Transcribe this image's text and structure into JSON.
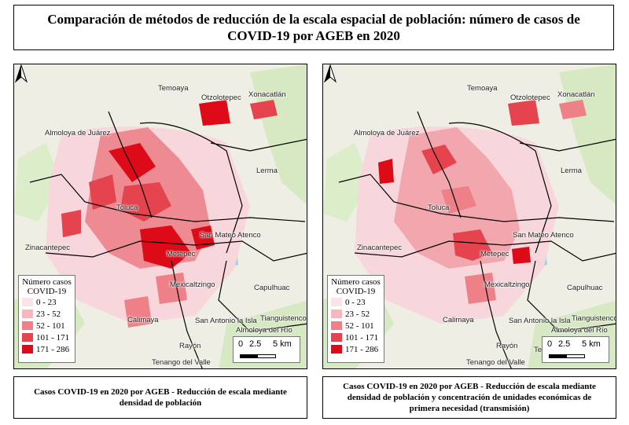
{
  "title": {
    "line1": "Comparación de métodos de reducción de la escala espacial de población: número de casos de",
    "line2": "COVID-19 por AGEB en 2020"
  },
  "places": {
    "temoaya": "Temoaya",
    "otzolotepec": "Otzolotepec",
    "xonacatlan": "Xonacatlán",
    "almoloya_juarez": "Almoloya de Juárez",
    "lerma": "Lerma",
    "toluca": "Toluca",
    "san_mateo_atenco": "San Mateo Atenco",
    "zinacantepec": "Zinacantepec",
    "metepec": "Metepec",
    "mexicaltzingo": "Mexicaltzingo",
    "capulhuac": "Capulhuac",
    "calimaya": "Calimaya",
    "san_antonio_isla": "San Antonio la Isla",
    "tianguistenco": "Tianguistenco",
    "almoloya_rio": "Almoloya del Río",
    "rayon": "Rayón",
    "tenango_valle": "Tenango del Valle",
    "texcalyacac_partial": "Tex"
  },
  "legend": {
    "title_line1": "Número casos",
    "title_line2": "COVID-19",
    "classes": [
      {
        "label": "0 - 23",
        "color": "#fbe3e6"
      },
      {
        "label": "23 - 52",
        "color": "#f6b8bd"
      },
      {
        "label": "52 - 101",
        "color": "#ee8088"
      },
      {
        "label": "101 - 171",
        "color": "#e5434d"
      },
      {
        "label": "171 - 286",
        "color": "#dd0a18"
      }
    ]
  },
  "scalebar": {
    "l0": "0",
    "l1": "2.5",
    "l2": "5 km"
  },
  "captions": {
    "left": {
      "line1": "Casos COVID-19 en 2020 por AGEB - Reducción de escala mediante",
      "line2": "densidad de población"
    },
    "right": {
      "line1": "Casos COVID-19 en 2020 por AGEB - Reducción de escala mediante",
      "line2": "densidad de población y concentración de unidades económicas de",
      "line3": "primera necesidad (transmisión)"
    }
  },
  "colors": {
    "urban_light": "#f6cfd6",
    "water": "#a9cfe6",
    "green": "#cfe6b8",
    "boundary": "#000000"
  }
}
